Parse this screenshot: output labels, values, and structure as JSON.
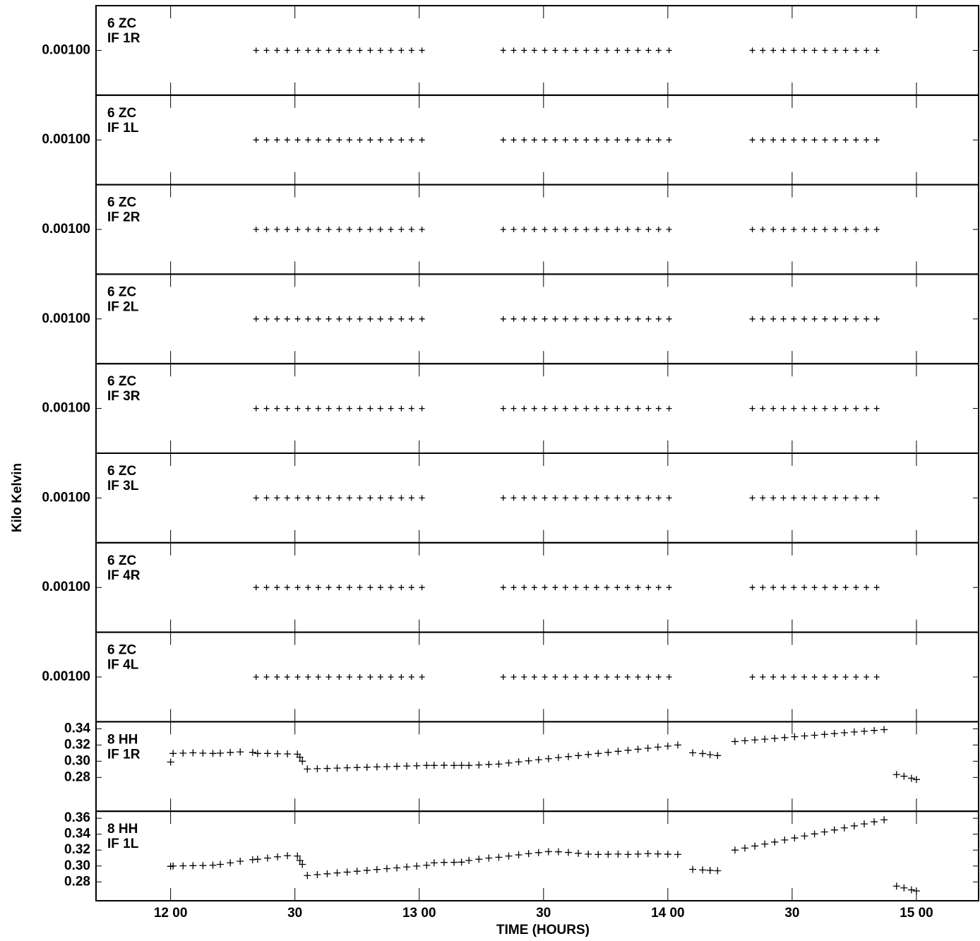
{
  "ylabel": "Kilo Kelvin",
  "xlabel": "TIME (HOURS)",
  "xlim": [
    11.7,
    15.25
  ],
  "xticks": [
    {
      "value": 12,
      "label": "12 00"
    },
    {
      "value": 12.5,
      "label": "30"
    },
    {
      "value": 13,
      "label": "13 00"
    },
    {
      "value": 13.5,
      "label": "30"
    },
    {
      "value": 14,
      "label": "14 00"
    },
    {
      "value": 14.5,
      "label": "30"
    },
    {
      "value": 15,
      "label": "15 00"
    }
  ],
  "chart_data": [
    {
      "type": "scatter",
      "station": "6 ZC",
      "channel": "IF 1R",
      "ylim": [
        0,
        0.002
      ],
      "yticks": [
        {
          "value": 0.001,
          "label": "0.00100"
        }
      ],
      "x": [
        12.344,
        12.386,
        12.428,
        12.469,
        12.511,
        12.553,
        12.594,
        12.636,
        12.678,
        12.719,
        12.761,
        12.803,
        12.844,
        12.886,
        12.928,
        12.969,
        13.011,
        13.338,
        13.38,
        13.422,
        13.463,
        13.505,
        13.547,
        13.588,
        13.63,
        13.672,
        13.713,
        13.755,
        13.797,
        13.838,
        13.88,
        13.922,
        13.963,
        14.005,
        14.34,
        14.382,
        14.424,
        14.465,
        14.507,
        14.549,
        14.59,
        14.632,
        14.674,
        14.715,
        14.757,
        14.799,
        14.84
      ],
      "values": [
        0.001,
        0.001,
        0.001,
        0.001,
        0.001,
        0.001,
        0.001,
        0.001,
        0.001,
        0.001,
        0.001,
        0.001,
        0.001,
        0.001,
        0.001,
        0.001,
        0.001,
        0.001,
        0.001,
        0.001,
        0.001,
        0.001,
        0.001,
        0.001,
        0.001,
        0.001,
        0.001,
        0.001,
        0.001,
        0.001,
        0.001,
        0.001,
        0.001,
        0.001,
        0.001,
        0.001,
        0.001,
        0.001,
        0.001,
        0.001,
        0.001,
        0.001,
        0.001,
        0.001,
        0.001,
        0.001,
        0.001
      ]
    },
    {
      "type": "scatter",
      "station": "6 ZC",
      "channel": "IF 1L",
      "ylim": [
        0,
        0.002
      ],
      "yticks": [
        {
          "value": 0.001,
          "label": "0.00100"
        }
      ],
      "x": [
        12.344,
        12.386,
        12.428,
        12.469,
        12.511,
        12.553,
        12.594,
        12.636,
        12.678,
        12.719,
        12.761,
        12.803,
        12.844,
        12.886,
        12.928,
        12.969,
        13.011,
        13.338,
        13.38,
        13.422,
        13.463,
        13.505,
        13.547,
        13.588,
        13.63,
        13.672,
        13.713,
        13.755,
        13.797,
        13.838,
        13.88,
        13.922,
        13.963,
        14.005,
        14.34,
        14.382,
        14.424,
        14.465,
        14.507,
        14.549,
        14.59,
        14.632,
        14.674,
        14.715,
        14.757,
        14.799,
        14.84
      ],
      "values": [
        0.001,
        0.001,
        0.001,
        0.001,
        0.001,
        0.001,
        0.001,
        0.001,
        0.001,
        0.001,
        0.001,
        0.001,
        0.001,
        0.001,
        0.001,
        0.001,
        0.001,
        0.001,
        0.001,
        0.001,
        0.001,
        0.001,
        0.001,
        0.001,
        0.001,
        0.001,
        0.001,
        0.001,
        0.001,
        0.001,
        0.001,
        0.001,
        0.001,
        0.001,
        0.001,
        0.001,
        0.001,
        0.001,
        0.001,
        0.001,
        0.001,
        0.001,
        0.001,
        0.001,
        0.001,
        0.001,
        0.001
      ]
    },
    {
      "type": "scatter",
      "station": "6 ZC",
      "channel": "IF 2R",
      "ylim": [
        0,
        0.002
      ],
      "yticks": [
        {
          "value": 0.001,
          "label": "0.00100"
        }
      ],
      "x": [
        12.344,
        12.386,
        12.428,
        12.469,
        12.511,
        12.553,
        12.594,
        12.636,
        12.678,
        12.719,
        12.761,
        12.803,
        12.844,
        12.886,
        12.928,
        12.969,
        13.011,
        13.338,
        13.38,
        13.422,
        13.463,
        13.505,
        13.547,
        13.588,
        13.63,
        13.672,
        13.713,
        13.755,
        13.797,
        13.838,
        13.88,
        13.922,
        13.963,
        14.005,
        14.34,
        14.382,
        14.424,
        14.465,
        14.507,
        14.549,
        14.59,
        14.632,
        14.674,
        14.715,
        14.757,
        14.799,
        14.84
      ],
      "values": [
        0.001,
        0.001,
        0.001,
        0.001,
        0.001,
        0.001,
        0.001,
        0.001,
        0.001,
        0.001,
        0.001,
        0.001,
        0.001,
        0.001,
        0.001,
        0.001,
        0.001,
        0.001,
        0.001,
        0.001,
        0.001,
        0.001,
        0.001,
        0.001,
        0.001,
        0.001,
        0.001,
        0.001,
        0.001,
        0.001,
        0.001,
        0.001,
        0.001,
        0.001,
        0.001,
        0.001,
        0.001,
        0.001,
        0.001,
        0.001,
        0.001,
        0.001,
        0.001,
        0.001,
        0.001,
        0.001,
        0.001
      ]
    },
    {
      "type": "scatter",
      "station": "6 ZC",
      "channel": "IF 2L",
      "ylim": [
        0,
        0.002
      ],
      "yticks": [
        {
          "value": 0.001,
          "label": "0.00100"
        }
      ],
      "x": [
        12.344,
        12.386,
        12.428,
        12.469,
        12.511,
        12.553,
        12.594,
        12.636,
        12.678,
        12.719,
        12.761,
        12.803,
        12.844,
        12.886,
        12.928,
        12.969,
        13.011,
        13.338,
        13.38,
        13.422,
        13.463,
        13.505,
        13.547,
        13.588,
        13.63,
        13.672,
        13.713,
        13.755,
        13.797,
        13.838,
        13.88,
        13.922,
        13.963,
        14.005,
        14.34,
        14.382,
        14.424,
        14.465,
        14.507,
        14.549,
        14.59,
        14.632,
        14.674,
        14.715,
        14.757,
        14.799,
        14.84
      ],
      "values": [
        0.001,
        0.001,
        0.001,
        0.001,
        0.001,
        0.001,
        0.001,
        0.001,
        0.001,
        0.001,
        0.001,
        0.001,
        0.001,
        0.001,
        0.001,
        0.001,
        0.001,
        0.001,
        0.001,
        0.001,
        0.001,
        0.001,
        0.001,
        0.001,
        0.001,
        0.001,
        0.001,
        0.001,
        0.001,
        0.001,
        0.001,
        0.001,
        0.001,
        0.001,
        0.001,
        0.001,
        0.001,
        0.001,
        0.001,
        0.001,
        0.001,
        0.001,
        0.001,
        0.001,
        0.001,
        0.001,
        0.001
      ]
    },
    {
      "type": "scatter",
      "station": "6 ZC",
      "channel": "IF 3R",
      "ylim": [
        0,
        0.002
      ],
      "yticks": [
        {
          "value": 0.001,
          "label": "0.00100"
        }
      ],
      "x": [
        12.344,
        12.386,
        12.428,
        12.469,
        12.511,
        12.553,
        12.594,
        12.636,
        12.678,
        12.719,
        12.761,
        12.803,
        12.844,
        12.886,
        12.928,
        12.969,
        13.011,
        13.338,
        13.38,
        13.422,
        13.463,
        13.505,
        13.547,
        13.588,
        13.63,
        13.672,
        13.713,
        13.755,
        13.797,
        13.838,
        13.88,
        13.922,
        13.963,
        14.005,
        14.34,
        14.382,
        14.424,
        14.465,
        14.507,
        14.549,
        14.59,
        14.632,
        14.674,
        14.715,
        14.757,
        14.799,
        14.84
      ],
      "values": [
        0.001,
        0.001,
        0.001,
        0.001,
        0.001,
        0.001,
        0.001,
        0.001,
        0.001,
        0.001,
        0.001,
        0.001,
        0.001,
        0.001,
        0.001,
        0.001,
        0.001,
        0.001,
        0.001,
        0.001,
        0.001,
        0.001,
        0.001,
        0.001,
        0.001,
        0.001,
        0.001,
        0.001,
        0.001,
        0.001,
        0.001,
        0.001,
        0.001,
        0.001,
        0.001,
        0.001,
        0.001,
        0.001,
        0.001,
        0.001,
        0.001,
        0.001,
        0.001,
        0.001,
        0.001,
        0.001,
        0.001
      ]
    },
    {
      "type": "scatter",
      "station": "6 ZC",
      "channel": "IF 3L",
      "ylim": [
        0,
        0.002
      ],
      "yticks": [
        {
          "value": 0.001,
          "label": "0.00100"
        }
      ],
      "x": [
        12.344,
        12.386,
        12.428,
        12.469,
        12.511,
        12.553,
        12.594,
        12.636,
        12.678,
        12.719,
        12.761,
        12.803,
        12.844,
        12.886,
        12.928,
        12.969,
        13.011,
        13.338,
        13.38,
        13.422,
        13.463,
        13.505,
        13.547,
        13.588,
        13.63,
        13.672,
        13.713,
        13.755,
        13.797,
        13.838,
        13.88,
        13.922,
        13.963,
        14.005,
        14.34,
        14.382,
        14.424,
        14.465,
        14.507,
        14.549,
        14.59,
        14.632,
        14.674,
        14.715,
        14.757,
        14.799,
        14.84
      ],
      "values": [
        0.001,
        0.001,
        0.001,
        0.001,
        0.001,
        0.001,
        0.001,
        0.001,
        0.001,
        0.001,
        0.001,
        0.001,
        0.001,
        0.001,
        0.001,
        0.001,
        0.001,
        0.001,
        0.001,
        0.001,
        0.001,
        0.001,
        0.001,
        0.001,
        0.001,
        0.001,
        0.001,
        0.001,
        0.001,
        0.001,
        0.001,
        0.001,
        0.001,
        0.001,
        0.001,
        0.001,
        0.001,
        0.001,
        0.001,
        0.001,
        0.001,
        0.001,
        0.001,
        0.001,
        0.001,
        0.001,
        0.001
      ]
    },
    {
      "type": "scatter",
      "station": "6 ZC",
      "channel": "IF 4R",
      "ylim": [
        0,
        0.002
      ],
      "yticks": [
        {
          "value": 0.001,
          "label": "0.00100"
        }
      ],
      "x": [
        12.344,
        12.386,
        12.428,
        12.469,
        12.511,
        12.553,
        12.594,
        12.636,
        12.678,
        12.719,
        12.761,
        12.803,
        12.844,
        12.886,
        12.928,
        12.969,
        13.011,
        13.338,
        13.38,
        13.422,
        13.463,
        13.505,
        13.547,
        13.588,
        13.63,
        13.672,
        13.713,
        13.755,
        13.797,
        13.838,
        13.88,
        13.922,
        13.963,
        14.005,
        14.34,
        14.382,
        14.424,
        14.465,
        14.507,
        14.549,
        14.59,
        14.632,
        14.674,
        14.715,
        14.757,
        14.799,
        14.84
      ],
      "values": [
        0.001,
        0.001,
        0.001,
        0.001,
        0.001,
        0.001,
        0.001,
        0.001,
        0.001,
        0.001,
        0.001,
        0.001,
        0.001,
        0.001,
        0.001,
        0.001,
        0.001,
        0.001,
        0.001,
        0.001,
        0.001,
        0.001,
        0.001,
        0.001,
        0.001,
        0.001,
        0.001,
        0.001,
        0.001,
        0.001,
        0.001,
        0.001,
        0.001,
        0.001,
        0.001,
        0.001,
        0.001,
        0.001,
        0.001,
        0.001,
        0.001,
        0.001,
        0.001,
        0.001,
        0.001,
        0.001,
        0.001
      ]
    },
    {
      "type": "scatter",
      "station": "6 ZC",
      "channel": "IF 4L",
      "ylim": [
        0,
        0.002
      ],
      "yticks": [
        {
          "value": 0.001,
          "label": "0.00100"
        }
      ],
      "x": [
        12.344,
        12.386,
        12.428,
        12.469,
        12.511,
        12.553,
        12.594,
        12.636,
        12.678,
        12.719,
        12.761,
        12.803,
        12.844,
        12.886,
        12.928,
        12.969,
        13.011,
        13.338,
        13.38,
        13.422,
        13.463,
        13.505,
        13.547,
        13.588,
        13.63,
        13.672,
        13.713,
        13.755,
        13.797,
        13.838,
        13.88,
        13.922,
        13.963,
        14.005,
        14.34,
        14.382,
        14.424,
        14.465,
        14.507,
        14.549,
        14.59,
        14.632,
        14.674,
        14.715,
        14.757,
        14.799,
        14.84
      ],
      "values": [
        0.001,
        0.001,
        0.001,
        0.001,
        0.001,
        0.001,
        0.001,
        0.001,
        0.001,
        0.001,
        0.001,
        0.001,
        0.001,
        0.001,
        0.001,
        0.001,
        0.001,
        0.001,
        0.001,
        0.001,
        0.001,
        0.001,
        0.001,
        0.001,
        0.001,
        0.001,
        0.001,
        0.001,
        0.001,
        0.001,
        0.001,
        0.001,
        0.001,
        0.001,
        0.001,
        0.001,
        0.001,
        0.001,
        0.001,
        0.001,
        0.001,
        0.001,
        0.001,
        0.001,
        0.001,
        0.001,
        0.001
      ]
    },
    {
      "type": "scatter",
      "station": "8 HH",
      "channel": "IF 1R",
      "ylim": [
        0.2383,
        0.3487
      ],
      "yticks": [
        0.28,
        {
          "value": 0.3,
          "label": "0.30"
        },
        0.32,
        0.34
      ],
      "x": [
        12,
        12.01,
        12.05,
        12.09,
        12.13,
        12.17,
        12.2,
        12.24,
        12.28,
        12.33,
        12.35,
        12.39,
        12.43,
        12.47,
        12.51,
        12.52,
        12.53,
        12.55,
        12.59,
        12.63,
        12.67,
        12.71,
        12.75,
        12.79,
        12.83,
        12.87,
        12.91,
        12.95,
        12.99,
        13.03,
        13.06,
        13.1,
        13.14,
        13.17,
        13.2,
        13.24,
        13.28,
        13.32,
        13.36,
        13.4,
        13.44,
        13.48,
        13.52,
        13.56,
        13.6,
        13.64,
        13.68,
        13.72,
        13.76,
        13.8,
        13.84,
        13.88,
        13.92,
        13.96,
        14,
        14.04,
        14.1,
        14.14,
        14.17,
        14.2,
        14.27,
        14.31,
        14.35,
        14.39,
        14.43,
        14.47,
        14.51,
        14.55,
        14.59,
        14.63,
        14.67,
        14.71,
        14.75,
        14.79,
        14.83,
        14.87,
        14.92,
        14.95,
        14.98,
        15
      ],
      "values": [
        0.299,
        0.3096,
        0.31,
        0.3104,
        0.31,
        0.3096,
        0.31,
        0.3108,
        0.3115,
        0.311,
        0.3096,
        0.3096,
        0.3092,
        0.309,
        0.3087,
        0.305,
        0.3,
        0.2904,
        0.2908,
        0.2911,
        0.2915,
        0.2919,
        0.2922,
        0.2926,
        0.293,
        0.2933,
        0.2937,
        0.2941,
        0.2944,
        0.2948,
        0.2948,
        0.295,
        0.2948,
        0.2949,
        0.2948,
        0.2954,
        0.296,
        0.2965,
        0.2979,
        0.2992,
        0.3005,
        0.3018,
        0.3031,
        0.3044,
        0.3057,
        0.307,
        0.3083,
        0.3096,
        0.3109,
        0.3122,
        0.3135,
        0.3148,
        0.3161,
        0.3174,
        0.3187,
        0.32,
        0.3104,
        0.3095,
        0.308,
        0.307,
        0.3243,
        0.3253,
        0.3263,
        0.3272,
        0.3282,
        0.3292,
        0.3302,
        0.3312,
        0.3321,
        0.3331,
        0.3341,
        0.3351,
        0.3361,
        0.337,
        0.338,
        0.339,
        0.2835,
        0.2815,
        0.279,
        0.2774
      ]
    },
    {
      "type": "scatter",
      "station": "8 HH",
      "channel": "IF 1L",
      "ylim": [
        0.2563,
        0.3688
      ],
      "yticks": [
        0.28,
        {
          "value": 0.3,
          "label": "0.30"
        },
        0.32,
        0.34,
        0.36
      ],
      "x": [
        12,
        12.01,
        12.05,
        12.09,
        12.13,
        12.17,
        12.2,
        12.24,
        12.28,
        12.33,
        12.35,
        12.39,
        12.43,
        12.47,
        12.51,
        12.52,
        12.53,
        12.55,
        12.59,
        12.63,
        12.67,
        12.71,
        12.75,
        12.79,
        12.83,
        12.87,
        12.91,
        12.95,
        12.99,
        13.03,
        13.06,
        13.1,
        13.14,
        13.17,
        13.2,
        13.24,
        13.28,
        13.32,
        13.36,
        13.4,
        13.44,
        13.48,
        13.52,
        13.56,
        13.6,
        13.64,
        13.68,
        13.72,
        13.76,
        13.8,
        13.84,
        13.88,
        13.92,
        13.96,
        14,
        14.04,
        14.1,
        14.14,
        14.17,
        14.2,
        14.27,
        14.31,
        14.35,
        14.39,
        14.43,
        14.47,
        14.51,
        14.55,
        14.59,
        14.63,
        14.67,
        14.71,
        14.75,
        14.79,
        14.83,
        14.87,
        14.92,
        14.95,
        14.98,
        15
      ],
      "values": [
        0.2995,
        0.3,
        0.3002,
        0.3004,
        0.3006,
        0.301,
        0.302,
        0.304,
        0.306,
        0.308,
        0.3085,
        0.31,
        0.3115,
        0.313,
        0.3125,
        0.307,
        0.302,
        0.288,
        0.2891,
        0.2902,
        0.2913,
        0.2923,
        0.2934,
        0.2945,
        0.2956,
        0.2967,
        0.2977,
        0.2988,
        0.2999,
        0.301,
        0.304,
        0.3045,
        0.3046,
        0.3048,
        0.307,
        0.3085,
        0.31,
        0.311,
        0.3125,
        0.314,
        0.3155,
        0.3168,
        0.318,
        0.3178,
        0.317,
        0.316,
        0.315,
        0.3145,
        0.3148,
        0.315,
        0.3145,
        0.315,
        0.3155,
        0.3152,
        0.3148,
        0.3145,
        0.2958,
        0.295,
        0.2945,
        0.294,
        0.32,
        0.3225,
        0.3251,
        0.3276,
        0.3301,
        0.3327,
        0.3352,
        0.3377,
        0.3403,
        0.3428,
        0.3453,
        0.3479,
        0.3504,
        0.3529,
        0.3555,
        0.358,
        0.2747,
        0.2725,
        0.27,
        0.2686
      ]
    }
  ]
}
